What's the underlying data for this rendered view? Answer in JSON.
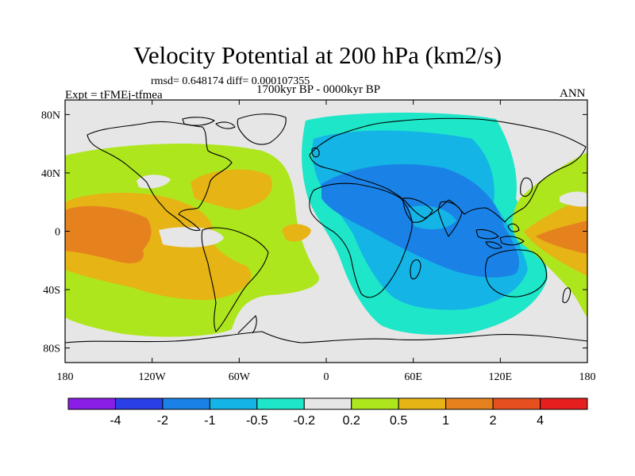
{
  "title": "Velocity Potential at 200 hPa (km2/s)",
  "stats": "rmsd= 0.648174  diff= 0.000107355",
  "experiment": "Expt = tFMEj-tfmea",
  "period": "1700kyr BP - 0000kyr BP",
  "season": "ANN",
  "map": {
    "lon_ticks": [
      "180",
      "120W",
      "60W",
      "0",
      "60E",
      "120E",
      "180"
    ],
    "lat_ticks": [
      "80N",
      "40N",
      "0",
      "40S",
      "80S"
    ],
    "lon_range": [
      -180,
      180
    ],
    "lat_range": [
      -90,
      90
    ]
  },
  "colorbar": {
    "labels": [
      "-4",
      "-2",
      "-1",
      "-0.5",
      "-0.2",
      "0.2",
      "0.5",
      "1",
      "2",
      "4"
    ],
    "colors": [
      "#8a1ee6",
      "#2b3fe6",
      "#1a82e6",
      "#14b5e6",
      "#1ee6c8",
      "#e6e6e6",
      "#aee61e",
      "#e6b414",
      "#e6821e",
      "#e6501e",
      "#e61e1e"
    ]
  },
  "colors": {
    "land_line": "#000000",
    "neutral": "#e6e6e6"
  }
}
